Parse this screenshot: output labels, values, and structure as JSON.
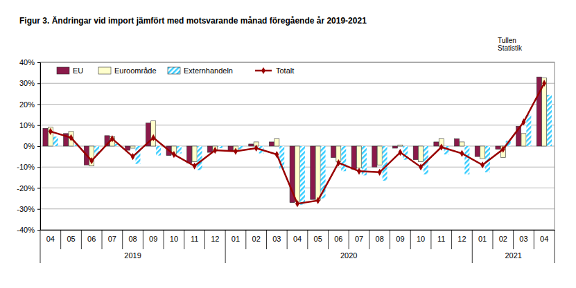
{
  "chart_data": {
    "type": "bar",
    "title": "Figur  3. Ändringar vid import jämfört med motsvarande månad föregående år 2019-2021",
    "source": [
      "Tullen",
      "Statistik"
    ],
    "categories": [
      "04",
      "05",
      "06",
      "07",
      "08",
      "09",
      "10",
      "11",
      "12",
      "01",
      "02",
      "03",
      "04",
      "05",
      "06",
      "07",
      "08",
      "09",
      "10",
      "11",
      "12",
      "01",
      "02",
      "03",
      "04"
    ],
    "groups": [
      {
        "label": "2019",
        "count": 9
      },
      {
        "label": "2020",
        "count": 12
      },
      {
        "label": "2021",
        "count": 4
      }
    ],
    "series": [
      {
        "name": "EU",
        "color": "#8b1a4b",
        "type": "bar",
        "values": [
          8.5,
          6,
          -9,
          5,
          -2,
          11,
          -4.5,
          -8,
          -3,
          -2.5,
          1,
          2,
          -27,
          -25.5,
          -5.5,
          -11,
          -10,
          -1,
          -6.5,
          2,
          3.5,
          -5,
          -1.5,
          9.5,
          33
        ]
      },
      {
        "name": "Euroområde",
        "color": "#ffffcc",
        "type": "bar",
        "values": [
          9,
          7,
          -9.5,
          4.5,
          -1,
          12,
          -4,
          -7.5,
          -2,
          -2,
          2,
          3.5,
          -26.5,
          -26,
          -7.5,
          -10.5,
          -9,
          0.5,
          -7.5,
          3.5,
          2,
          -6,
          -5.5,
          6,
          32.5
        ]
      },
      {
        "name": "Externhandeln",
        "color": "#33ccff",
        "type": "bar",
        "values": [
          4.5,
          1,
          -4,
          1,
          -8.5,
          -4.5,
          -3.5,
          -11.5,
          -1,
          -1.5,
          -3.5,
          -11,
          -28,
          -25,
          -12,
          -14,
          -16.5,
          -6.5,
          -13.5,
          -4,
          -13.5,
          -12.5,
          2.5,
          15,
          24.5
        ]
      },
      {
        "name": "Totalt",
        "color": "#990000",
        "type": "line",
        "marker": "diamond",
        "values": [
          7,
          4,
          -7,
          3.5,
          -5,
          4,
          -4,
          -9.5,
          -2,
          -2.5,
          -1,
          -4,
          -27.5,
          -26,
          -8,
          -12,
          -12.5,
          -3,
          -10,
          -0.5,
          -3.5,
          -9,
          -1.5,
          11.5,
          30
        ]
      }
    ],
    "ylim": [
      -40,
      40
    ],
    "yticks": [
      {
        "value": -40,
        "label": "-40%"
      },
      {
        "value": -30,
        "label": "-30%"
      },
      {
        "value": -20,
        "label": "-20%"
      },
      {
        "value": -10,
        "label": "-10%"
      },
      {
        "value": 0,
        "label": "0%"
      },
      {
        "value": 10,
        "label": "10%"
      },
      {
        "value": 20,
        "label": "20%"
      },
      {
        "value": 30,
        "label": "30%"
      },
      {
        "value": 40,
        "label": "40%"
      }
    ],
    "grid": true,
    "legend": "top-left"
  }
}
